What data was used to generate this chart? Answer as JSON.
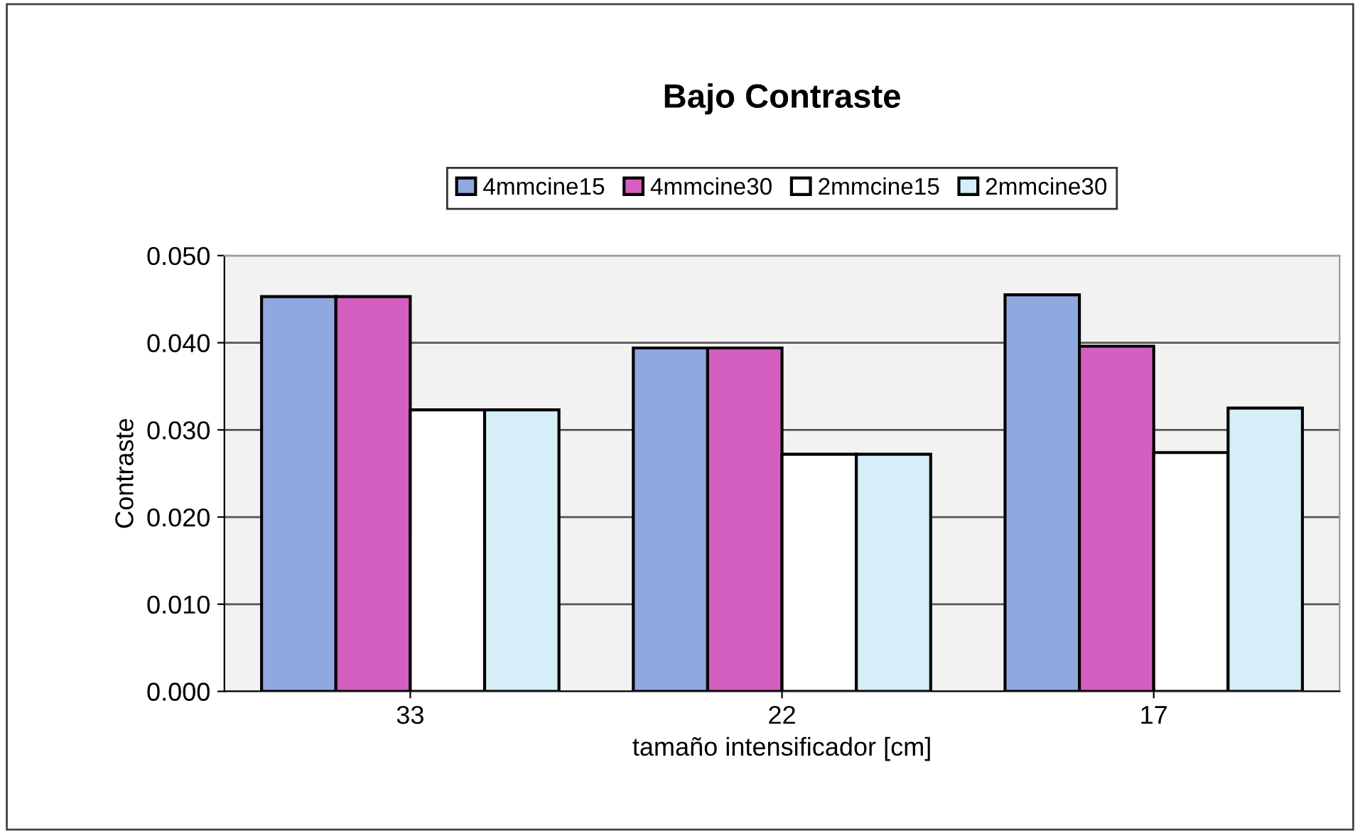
{
  "chart_data": {
    "type": "bar",
    "title": "Bajo Contraste",
    "xlabel": "tamaño intensificador [cm]",
    "ylabel": "Contraste",
    "categories": [
      "33",
      "22",
      "17"
    ],
    "series": [
      {
        "name": "4mmcine15",
        "color": "#8fa8e0",
        "values": [
          0.0453,
          0.0394,
          0.0455
        ]
      },
      {
        "name": "4mmcine30",
        "color": "#d55fc0",
        "values": [
          0.0453,
          0.0394,
          0.0396
        ]
      },
      {
        "name": "2mmcine15",
        "color": "#ffffff",
        "values": [
          0.0323,
          0.0272,
          0.0274
        ]
      },
      {
        "name": "2mmcine30",
        "color": "#d5eef7",
        "values": [
          0.0323,
          0.0272,
          0.0325
        ]
      }
    ],
    "ylim": [
      0,
      0.05
    ],
    "yticks": [
      {
        "value": 0,
        "label": "0.000"
      },
      {
        "value": 0.01,
        "label": "0.010"
      },
      {
        "value": 0.02,
        "label": "0.020"
      },
      {
        "value": 0.03,
        "label": "0.030"
      },
      {
        "value": 0.04,
        "label": "0.040"
      },
      {
        "value": 0.05,
        "label": "0.050"
      }
    ],
    "grid": "y",
    "legend": "top"
  }
}
